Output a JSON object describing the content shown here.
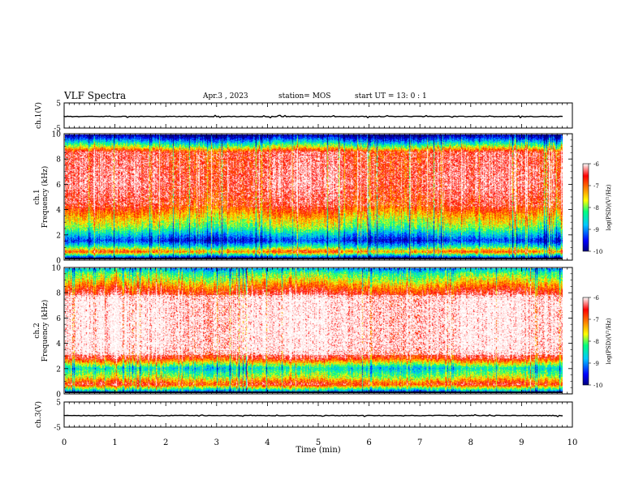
{
  "header": {
    "title": "VLF Spectra",
    "date": "Apr.3 , 2023",
    "station": "station= MOS",
    "start": "start UT = 13: 0 : 1"
  },
  "chart_data": [
    {
      "type": "line",
      "panel": "ch1-waveform",
      "ylabel": "ch.1(V)",
      "ylim": [
        -5,
        5
      ],
      "y_ticks": [
        "5",
        "-5"
      ],
      "description_level": -0.4
    },
    {
      "type": "heatmap",
      "panel": "ch1-spectrogram",
      "ylabel_line1": "ch.1",
      "ylabel_line2": "Frequency (kHz)",
      "ylim": [
        0,
        10
      ],
      "y_ticks": [
        "0",
        "2",
        "4",
        "6",
        "8",
        "10"
      ],
      "band_profile_khz": [
        {
          "f": 0.1,
          "level": 0.05
        },
        {
          "f": 0.6,
          "level": 0.75
        },
        {
          "f": 1.0,
          "level": 0.4
        },
        {
          "f": 1.5,
          "level": 0.12
        },
        {
          "f": 2.0,
          "level": 0.3
        },
        {
          "f": 2.6,
          "level": 0.5
        },
        {
          "f": 3.3,
          "level": 0.62
        },
        {
          "f": 4.2,
          "level": 0.8
        },
        {
          "f": 6.0,
          "level": 0.9
        },
        {
          "f": 8.6,
          "level": 0.85
        },
        {
          "f": 9.0,
          "level": 0.55
        },
        {
          "f": 9.5,
          "level": 0.25
        },
        {
          "f": 9.9,
          "level": 0.0
        }
      ]
    },
    {
      "type": "heatmap",
      "panel": "ch2-spectrogram",
      "ylabel_line1": "ch.2",
      "ylabel_line2": "Frequency (kHz)",
      "ylim": [
        0,
        10
      ],
      "y_ticks": [
        "0",
        "2",
        "4",
        "6",
        "8",
        "10"
      ],
      "band_profile_khz": [
        {
          "f": 0.1,
          "level": 0.2
        },
        {
          "f": 0.7,
          "level": 0.85
        },
        {
          "f": 1.3,
          "level": 0.55
        },
        {
          "f": 2.0,
          "level": 0.35
        },
        {
          "f": 2.8,
          "level": 0.85
        },
        {
          "f": 3.5,
          "level": 0.98
        },
        {
          "f": 7.5,
          "level": 0.98
        },
        {
          "f": 8.3,
          "level": 0.8
        },
        {
          "f": 9.0,
          "level": 0.6
        },
        {
          "f": 9.6,
          "level": 0.45
        },
        {
          "f": 9.9,
          "level": 0.3
        }
      ]
    },
    {
      "type": "line",
      "panel": "ch3-waveform",
      "ylabel": "ch.3(V)",
      "ylim": [
        -5,
        5
      ],
      "y_ticks": [
        "5",
        "-5"
      ],
      "description_level": -0.4
    }
  ],
  "x_axis": {
    "label": "Time (min)",
    "ticks": [
      "0",
      "1",
      "2",
      "3",
      "4",
      "5",
      "6",
      "7",
      "8",
      "9",
      "10"
    ],
    "xlim": [
      0,
      10
    ],
    "data_end": 9.82
  },
  "colorbars": [
    {
      "label": "log(PSD)(V²/Hz)",
      "ticks": [
        "-6",
        "-7",
        "-8",
        "-9",
        "-10"
      ],
      "range": [
        -10,
        -6
      ]
    },
    {
      "label": "log(PSD)(V²/Hz)",
      "ticks": [
        "-6",
        "-7",
        "-8",
        "-9",
        "-10"
      ],
      "range": [
        -10,
        -6
      ]
    }
  ],
  "colors": {
    "colormap": [
      "#000080",
      "#0000ff",
      "#00c8ff",
      "#00ff80",
      "#ffff00",
      "#ff8000",
      "#ff0000",
      "#ffffff"
    ]
  }
}
